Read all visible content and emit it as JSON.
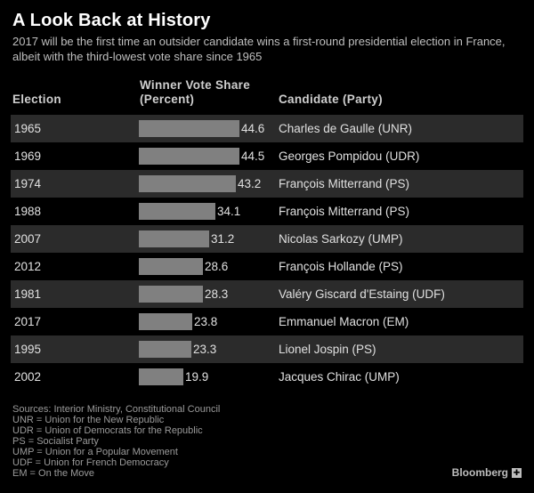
{
  "chart_data": {
    "type": "table",
    "title": "A Look Back at History",
    "subtitle": "2017 will be the first time an outsider candidate wins a first-round presidential election in France, albeit with the third-lowest vote share since 1965",
    "columns": [
      "Election",
      "Winner Vote Share (Percent)",
      "Candidate (Party)"
    ],
    "rows": [
      {
        "year": "1965",
        "value": 44.6,
        "label": "44.6",
        "candidate": "Charles de Gaulle (UNR)"
      },
      {
        "year": "1969",
        "value": 44.5,
        "label": "44.5",
        "candidate": "Georges Pompidou (UDR)"
      },
      {
        "year": "1974",
        "value": 43.2,
        "label": "43.2",
        "candidate": "François Mitterrand (PS)"
      },
      {
        "year": "1988",
        "value": 34.1,
        "label": "34.1",
        "candidate": "François Mitterrand (PS)"
      },
      {
        "year": "2007",
        "value": 31.2,
        "label": "31.2",
        "candidate": "Nicolas Sarkozy (UMP)"
      },
      {
        "year": "2012",
        "value": 28.6,
        "label": "28.6",
        "candidate": "François Hollande (PS)"
      },
      {
        "year": "1981",
        "value": 28.3,
        "label": "28.3",
        "candidate": "Valéry Giscard d'Estaing (UDF)"
      },
      {
        "year": "2017",
        "value": 23.8,
        "label": "23.8",
        "candidate": "Emmanuel Macron (EM)"
      },
      {
        "year": "1995",
        "value": 23.3,
        "label": "23.3",
        "candidate": "Lionel Jospin (PS)"
      },
      {
        "year": "2002",
        "value": 19.9,
        "label": "19.9",
        "candidate": "Jacques Chirac (UMP)"
      }
    ],
    "bar_color": "#808080",
    "notes": [
      "Sources: Interior Ministry, Constitutional Council",
      "UNR = Union for the New Republic",
      "UDR = Union of Democrats for the Republic",
      "PS = Socialist Party",
      "UMP = Union for a Popular Movement",
      "UDF = Union for French Democracy",
      "EM = On the Move"
    ],
    "brand": "Bloomberg"
  }
}
